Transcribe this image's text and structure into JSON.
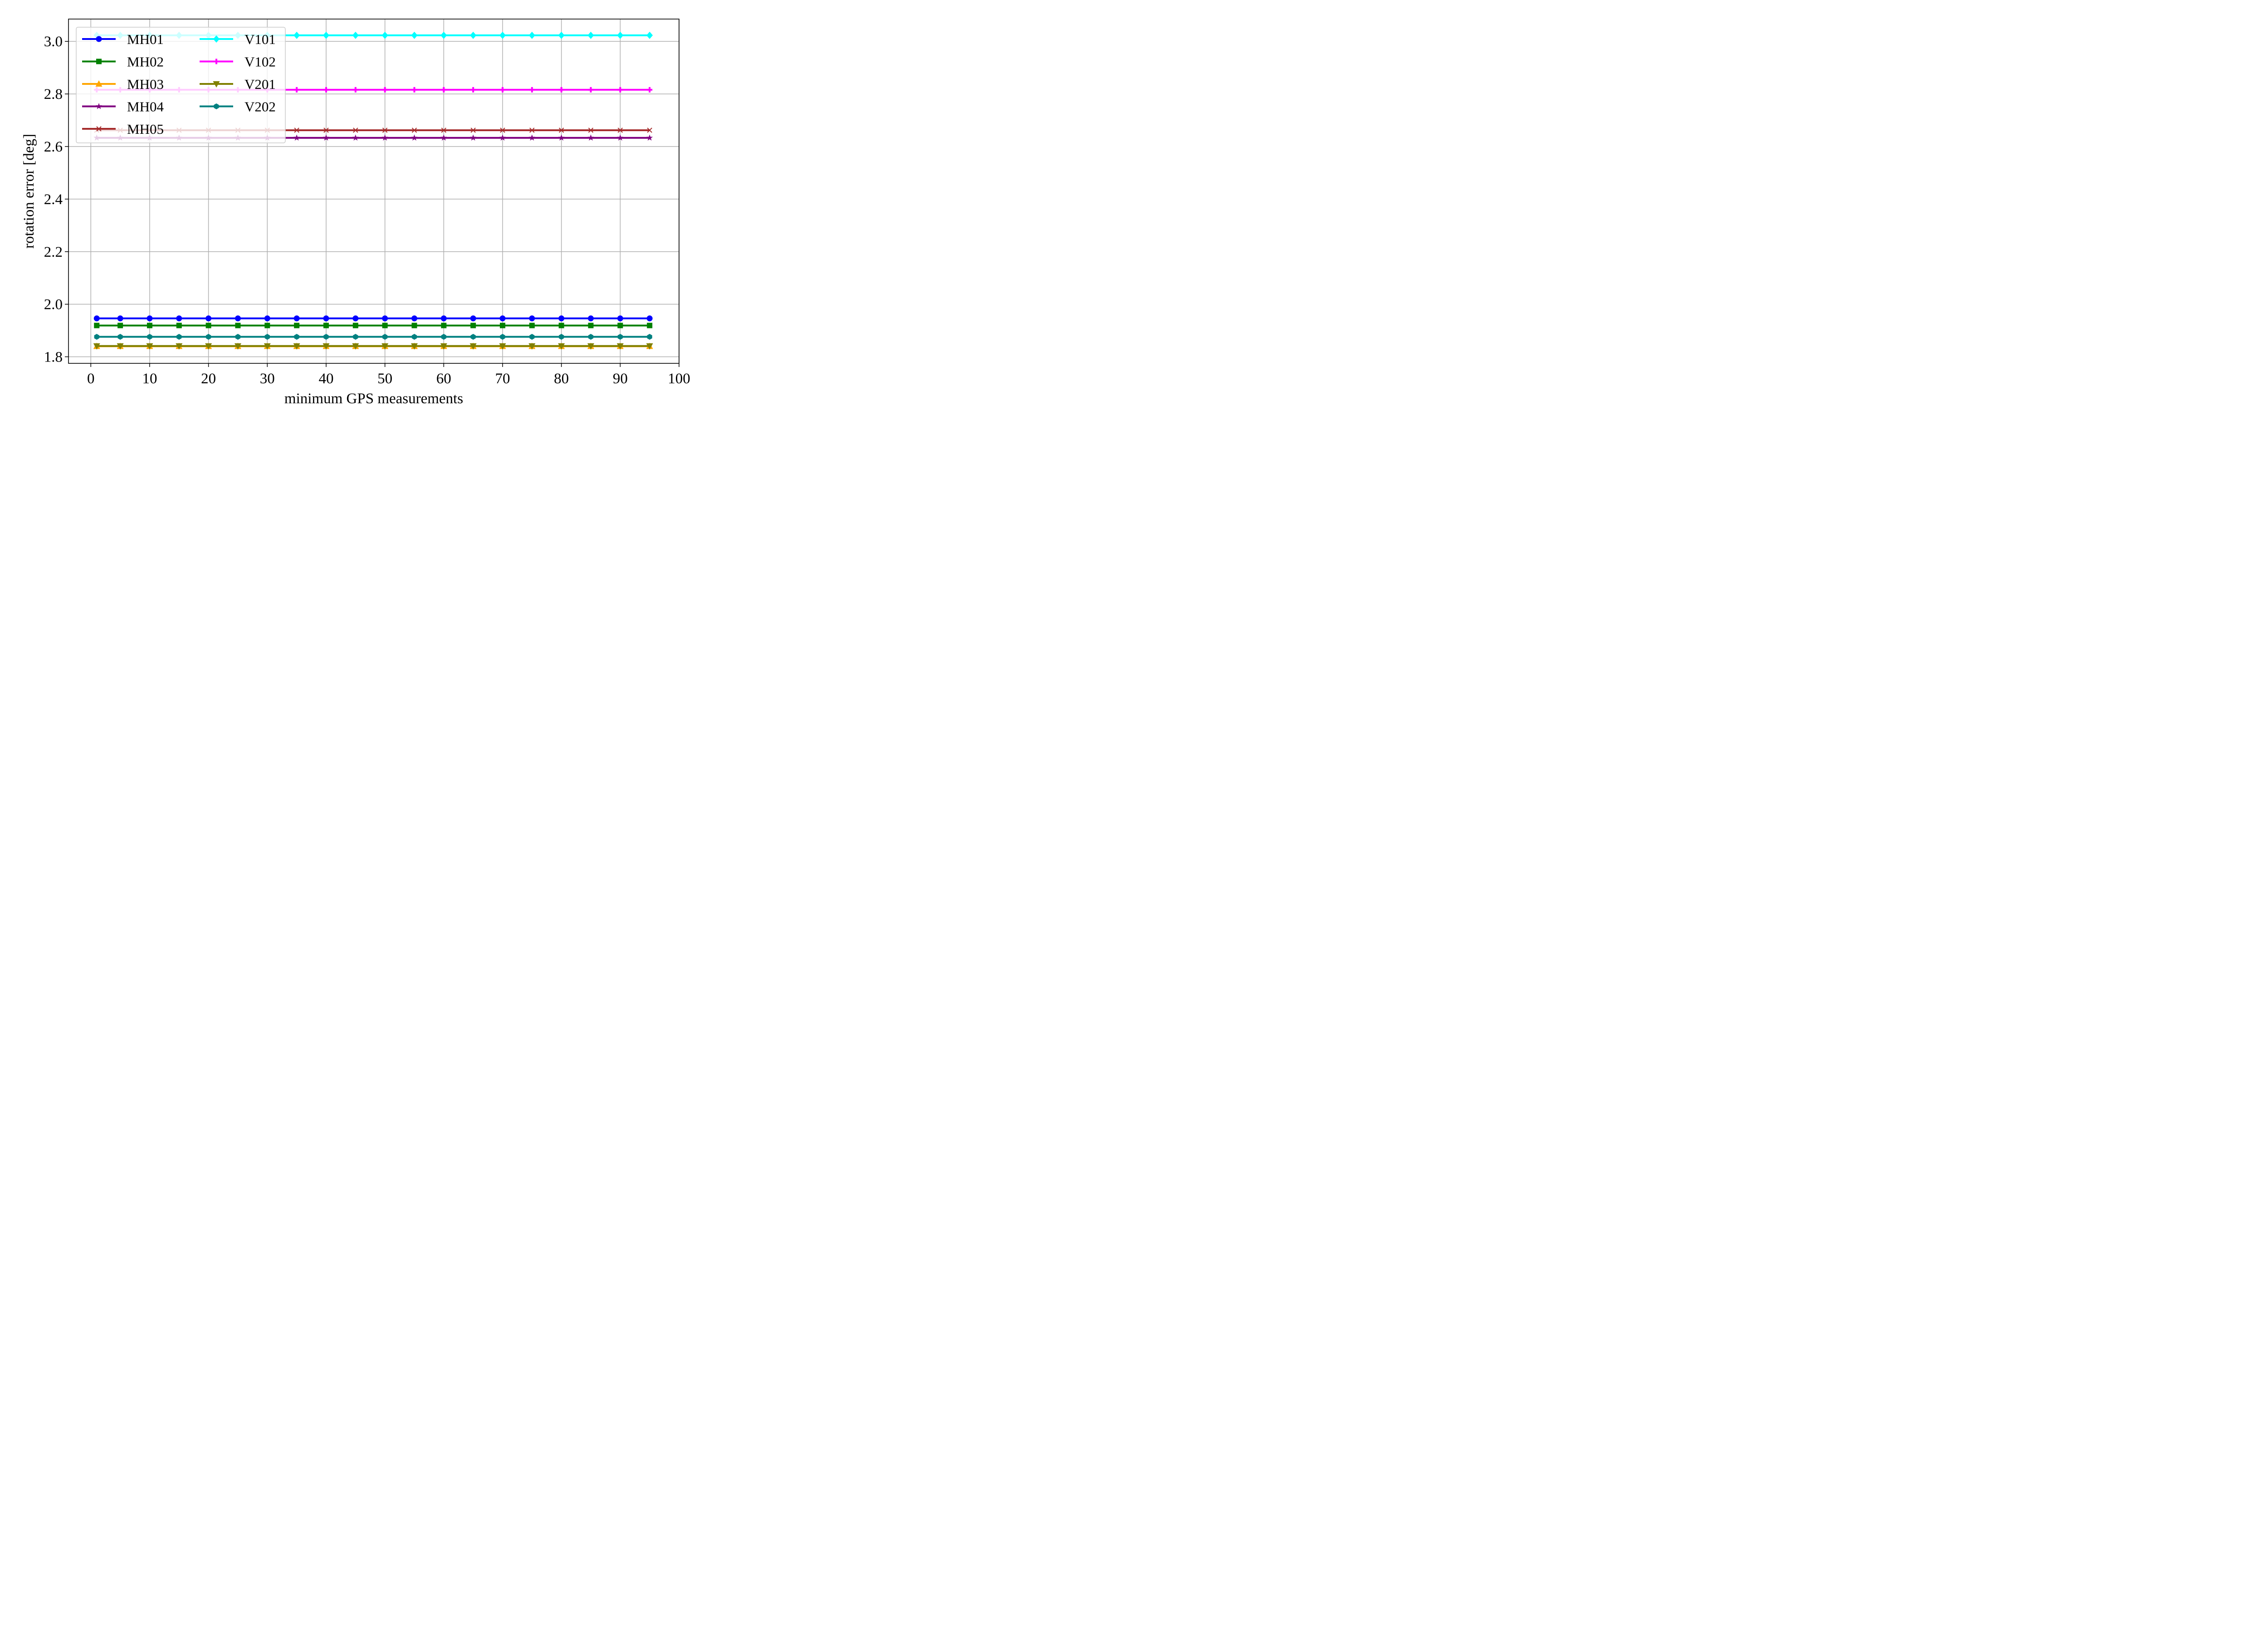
{
  "chart_data": {
    "type": "line",
    "title": "",
    "xlabel": "minimum GPS measurements",
    "ylabel": "rotation error [deg]",
    "xlim": [
      -3.8,
      100
    ],
    "ylim": [
      1.775,
      3.085
    ],
    "xticks": [
      0,
      10,
      20,
      30,
      40,
      50,
      60,
      70,
      80,
      90,
      100
    ],
    "xtick_labels": [
      "0",
      "10",
      "20",
      "30",
      "40",
      "50",
      "60",
      "70",
      "80",
      "90",
      "100"
    ],
    "yticks": [
      1.8,
      2.0,
      2.2,
      2.4,
      2.6,
      2.8,
      3.0
    ],
    "ytick_labels": [
      "1.8",
      "2.0",
      "2.2",
      "2.4",
      "2.6",
      "2.8",
      "3.0"
    ],
    "grid": true,
    "legend_position": "top-left",
    "legend_columns": 2,
    "x": [
      1,
      5,
      10,
      15,
      20,
      25,
      30,
      35,
      40,
      45,
      50,
      55,
      60,
      65,
      70,
      75,
      80,
      85,
      90,
      95
    ],
    "series": [
      {
        "name": "MH01",
        "color": "#0000ff",
        "marker": "circle",
        "values": [
          1.946,
          1.946,
          1.946,
          1.946,
          1.946,
          1.946,
          1.946,
          1.946,
          1.946,
          1.946,
          1.946,
          1.946,
          1.946,
          1.946,
          1.946,
          1.946,
          1.946,
          1.946,
          1.946,
          1.946
        ]
      },
      {
        "name": "MH02",
        "color": "#008000",
        "marker": "square",
        "values": [
          1.919,
          1.919,
          1.919,
          1.919,
          1.919,
          1.919,
          1.919,
          1.919,
          1.919,
          1.919,
          1.919,
          1.919,
          1.919,
          1.919,
          1.919,
          1.919,
          1.919,
          1.919,
          1.919,
          1.919
        ]
      },
      {
        "name": "MH03",
        "color": "#ffa500",
        "marker": "triangle-up",
        "values": [
          1.84,
          1.84,
          1.84,
          1.84,
          1.84,
          1.84,
          1.84,
          1.84,
          1.84,
          1.84,
          1.84,
          1.84,
          1.84,
          1.84,
          1.84,
          1.84,
          1.84,
          1.84,
          1.84,
          1.84
        ]
      },
      {
        "name": "MH04",
        "color": "#800080",
        "marker": "star",
        "values": [
          2.633,
          2.633,
          2.633,
          2.633,
          2.633,
          2.633,
          2.633,
          2.633,
          2.633,
          2.633,
          2.633,
          2.633,
          2.633,
          2.633,
          2.633,
          2.633,
          2.633,
          2.633,
          2.633,
          2.633
        ]
      },
      {
        "name": "MH05",
        "color": "#a52a2a",
        "marker": "x",
        "values": [
          2.662,
          2.662,
          2.662,
          2.662,
          2.662,
          2.662,
          2.662,
          2.662,
          2.662,
          2.662,
          2.662,
          2.662,
          2.662,
          2.662,
          2.662,
          2.662,
          2.662,
          2.662,
          2.662,
          2.662
        ]
      },
      {
        "name": "V101",
        "color": "#00ffff",
        "marker": "diamond",
        "values": [
          3.023,
          3.023,
          3.023,
          3.023,
          3.023,
          3.023,
          3.023,
          3.023,
          3.023,
          3.023,
          3.023,
          3.023,
          3.023,
          3.023,
          3.023,
          3.023,
          3.023,
          3.023,
          3.023,
          3.023
        ]
      },
      {
        "name": "V102",
        "color": "#ff00ff",
        "marker": "plus",
        "values": [
          2.816,
          2.816,
          2.816,
          2.816,
          2.816,
          2.816,
          2.816,
          2.816,
          2.816,
          2.816,
          2.816,
          2.816,
          2.816,
          2.816,
          2.816,
          2.816,
          2.816,
          2.816,
          2.816,
          2.816
        ]
      },
      {
        "name": "V201",
        "color": "#808000",
        "marker": "triangle-down",
        "values": [
          1.841,
          1.841,
          1.841,
          1.841,
          1.841,
          1.841,
          1.841,
          1.841,
          1.841,
          1.841,
          1.841,
          1.841,
          1.841,
          1.841,
          1.841,
          1.841,
          1.841,
          1.841,
          1.841,
          1.841
        ]
      },
      {
        "name": "V202",
        "color": "#008080",
        "marker": "hexagon",
        "values": [
          1.876,
          1.876,
          1.876,
          1.876,
          1.876,
          1.876,
          1.876,
          1.876,
          1.876,
          1.876,
          1.876,
          1.876,
          1.876,
          1.876,
          1.876,
          1.876,
          1.876,
          1.876,
          1.876,
          1.876
        ]
      }
    ]
  }
}
